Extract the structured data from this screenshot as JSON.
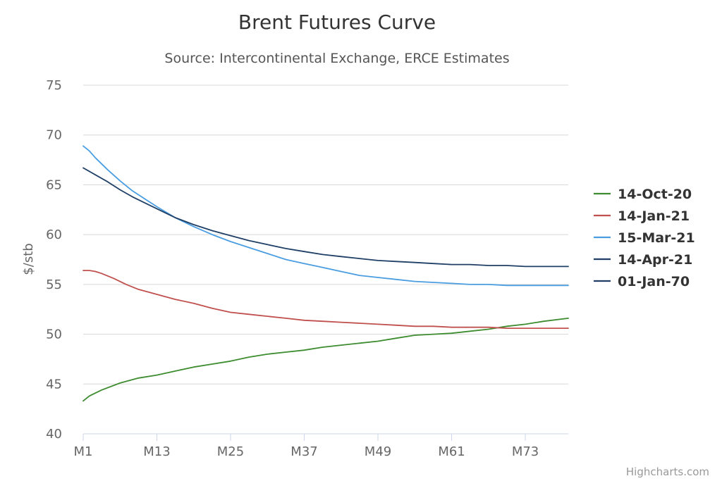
{
  "chart_data": {
    "type": "line",
    "title": "Brent Futures Curve",
    "subtitle": "Source: Intercontinental Exchange, ERCE Estimates",
    "ylabel": "$/stb",
    "xlabel": "",
    "ylim": [
      40,
      75
    ],
    "yticks": [
      40,
      45,
      50,
      55,
      60,
      65,
      70,
      75
    ],
    "xlim": [
      1,
      80
    ],
    "xticks": [
      {
        "value": 1,
        "label": "M1"
      },
      {
        "value": 13,
        "label": "M13"
      },
      {
        "value": 25,
        "label": "M25"
      },
      {
        "value": 37,
        "label": "M37"
      },
      {
        "value": 49,
        "label": "M49"
      },
      {
        "value": 61,
        "label": "M61"
      },
      {
        "value": 73,
        "label": "M73"
      }
    ],
    "grid": true,
    "legend_position": "right",
    "series": [
      {
        "name": "14-Oct-20",
        "color": "#3d8c2f",
        "points": [
          [
            1,
            43.3
          ],
          [
            2,
            43.8
          ],
          [
            4,
            44.4
          ],
          [
            7,
            45.1
          ],
          [
            10,
            45.6
          ],
          [
            13,
            45.9
          ],
          [
            16,
            46.3
          ],
          [
            19,
            46.7
          ],
          [
            22,
            47.0
          ],
          [
            25,
            47.3
          ],
          [
            28,
            47.7
          ],
          [
            31,
            48.0
          ],
          [
            34,
            48.2
          ],
          [
            37,
            48.4
          ],
          [
            40,
            48.7
          ],
          [
            43,
            48.9
          ],
          [
            46,
            49.1
          ],
          [
            49,
            49.3
          ],
          [
            52,
            49.6
          ],
          [
            55,
            49.9
          ],
          [
            58,
            50.0
          ],
          [
            61,
            50.1
          ],
          [
            64,
            50.3
          ],
          [
            67,
            50.5
          ],
          [
            70,
            50.8
          ],
          [
            73,
            51.0
          ],
          [
            76,
            51.3
          ],
          [
            80,
            51.6
          ]
        ]
      },
      {
        "name": "14-Jan-21",
        "color": "#c0504d",
        "points": [
          [
            1,
            56.4
          ],
          [
            2,
            56.4
          ],
          [
            3,
            56.3
          ],
          [
            4,
            56.1
          ],
          [
            6,
            55.6
          ],
          [
            8,
            55.0
          ],
          [
            10,
            54.5
          ],
          [
            13,
            54.0
          ],
          [
            16,
            53.5
          ],
          [
            19,
            53.1
          ],
          [
            22,
            52.6
          ],
          [
            25,
            52.2
          ],
          [
            28,
            52.0
          ],
          [
            31,
            51.8
          ],
          [
            34,
            51.6
          ],
          [
            37,
            51.4
          ],
          [
            40,
            51.3
          ],
          [
            43,
            51.2
          ],
          [
            46,
            51.1
          ],
          [
            49,
            51.0
          ],
          [
            52,
            50.9
          ],
          [
            55,
            50.8
          ],
          [
            58,
            50.8
          ],
          [
            61,
            50.7
          ],
          [
            64,
            50.7
          ],
          [
            67,
            50.7
          ],
          [
            70,
            50.6
          ],
          [
            73,
            50.6
          ],
          [
            76,
            50.6
          ],
          [
            80,
            50.6
          ]
        ]
      },
      {
        "name": "15-Mar-21",
        "color": "#4a9de0",
        "points": [
          [
            1,
            68.9
          ],
          [
            2,
            68.4
          ],
          [
            3,
            67.7
          ],
          [
            5,
            66.5
          ],
          [
            7,
            65.4
          ],
          [
            9,
            64.4
          ],
          [
            11,
            63.6
          ],
          [
            13,
            62.8
          ],
          [
            16,
            61.7
          ],
          [
            19,
            60.8
          ],
          [
            22,
            60.0
          ],
          [
            25,
            59.3
          ],
          [
            28,
            58.7
          ],
          [
            31,
            58.1
          ],
          [
            34,
            57.5
          ],
          [
            37,
            57.1
          ],
          [
            40,
            56.7
          ],
          [
            43,
            56.3
          ],
          [
            46,
            55.9
          ],
          [
            49,
            55.7
          ],
          [
            52,
            55.5
          ],
          [
            55,
            55.3
          ],
          [
            58,
            55.2
          ],
          [
            61,
            55.1
          ],
          [
            64,
            55.0
          ],
          [
            67,
            55.0
          ],
          [
            70,
            54.9
          ],
          [
            73,
            54.9
          ],
          [
            76,
            54.9
          ],
          [
            80,
            54.9
          ]
        ]
      },
      {
        "name": "14-Apr-21",
        "color": "#1f3f66",
        "points": [
          [
            1,
            66.7
          ],
          [
            3,
            66.0
          ],
          [
            5,
            65.3
          ],
          [
            7,
            64.5
          ],
          [
            9,
            63.8
          ],
          [
            11,
            63.2
          ],
          [
            13,
            62.6
          ],
          [
            16,
            61.7
          ],
          [
            19,
            61.0
          ],
          [
            22,
            60.4
          ],
          [
            25,
            59.9
          ],
          [
            28,
            59.4
          ],
          [
            31,
            59.0
          ],
          [
            34,
            58.6
          ],
          [
            37,
            58.3
          ],
          [
            40,
            58.0
          ],
          [
            43,
            57.8
          ],
          [
            46,
            57.6
          ],
          [
            49,
            57.4
          ],
          [
            52,
            57.3
          ],
          [
            55,
            57.2
          ],
          [
            58,
            57.1
          ],
          [
            61,
            57.0
          ],
          [
            64,
            57.0
          ],
          [
            67,
            56.9
          ],
          [
            70,
            56.9
          ],
          [
            73,
            56.8
          ],
          [
            76,
            56.8
          ],
          [
            80,
            56.8
          ]
        ]
      },
      {
        "name": "01-Jan-70",
        "color": "#1f3f66",
        "points": []
      }
    ],
    "credit": "Highcharts.com"
  }
}
